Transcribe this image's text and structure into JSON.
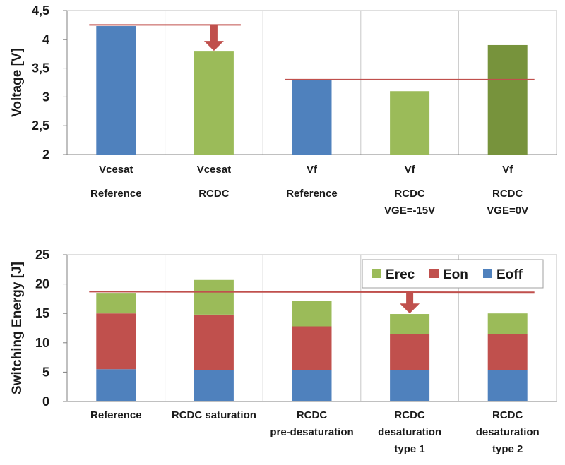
{
  "chart_data": [
    {
      "type": "bar",
      "ylabel": "Voltage [V]",
      "ylim": [
        2,
        4.5
      ],
      "yticks": [
        "2",
        "2,5",
        "3",
        "3,5",
        "4",
        "4,5"
      ],
      "grid": "vertical",
      "categories": [
        {
          "lines": [
            "Vcesat",
            "Reference"
          ]
        },
        {
          "lines": [
            "Vcesat",
            "RCDC"
          ]
        },
        {
          "lines": [
            "Vf",
            "Reference"
          ]
        },
        {
          "lines": [
            "Vf",
            "RCDC",
            "VGE=-15V"
          ]
        },
        {
          "lines": [
            "Vf",
            "RCDC",
            "VGE=0V"
          ]
        }
      ],
      "values": [
        4.23,
        3.8,
        3.3,
        3.1,
        3.9
      ],
      "bar_colors": [
        "#4f81bd",
        "#9bbb59",
        "#4f81bd",
        "#9bbb59",
        "#77933c"
      ],
      "reference_lines": [
        {
          "y": 4.25,
          "from_category": 0,
          "to_category": 1
        },
        {
          "y": 3.3,
          "from_category": 2,
          "to_category": 4
        }
      ],
      "arrow": {
        "category": 1,
        "from": 4.25,
        "to": 3.8,
        "color": "#c0504d"
      },
      "line_color": "#c0504d"
    },
    {
      "type": "stacked_bar",
      "ylabel": "Switching Energy [J]",
      "ylim": [
        0,
        25
      ],
      "yticks": [
        "0",
        "5",
        "10",
        "15",
        "20",
        "25"
      ],
      "grid": "vertical",
      "categories": [
        {
          "lines": [
            "Reference"
          ]
        },
        {
          "lines": [
            "RCDC saturation"
          ]
        },
        {
          "lines": [
            "RCDC",
            "pre-desaturation"
          ]
        },
        {
          "lines": [
            "RCDC",
            "desaturation",
            "type 1"
          ]
        },
        {
          "lines": [
            "RCDC",
            "desaturation",
            "type 2"
          ]
        }
      ],
      "series": [
        {
          "name": "Eoff",
          "color": "#4f81bd",
          "values": [
            5.5,
            5.3,
            5.3,
            5.3,
            5.3
          ]
        },
        {
          "name": "Eon",
          "color": "#c0504d",
          "values": [
            9.5,
            9.5,
            7.5,
            6.2,
            6.2
          ]
        },
        {
          "name": "Erec",
          "color": "#9bbb59",
          "values": [
            3.5,
            5.9,
            4.3,
            3.4,
            3.5
          ]
        }
      ],
      "legend": {
        "position": "top-right",
        "order": [
          "Erec",
          "Eon",
          "Eoff"
        ]
      },
      "reference_line": {
        "y_start": 18.7,
        "y_end": 18.6,
        "from_category": 0,
        "to_category": 4
      },
      "arrow": {
        "category": 3,
        "from": 18.7,
        "to": 15.0,
        "color": "#c0504d"
      },
      "line_color": "#c0504d"
    }
  ]
}
